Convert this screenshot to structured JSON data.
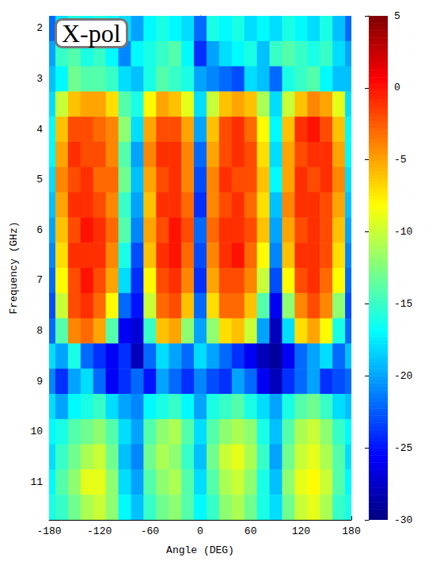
{
  "chart_data": {
    "type": "heatmap",
    "title": "X-pol",
    "x_label": "Angle (DEG)",
    "y_label": "Frequency (GHz)",
    "x": [
      -180,
      -165,
      -150,
      -135,
      -120,
      -105,
      -90,
      -75,
      -60,
      -45,
      -30,
      -15,
      0,
      15,
      30,
      45,
      60,
      75,
      90,
      105,
      120,
      135,
      150,
      165,
      180
    ],
    "y": [
      2,
      2.5,
      3,
      3.5,
      4,
      4.5,
      5,
      5.5,
      6,
      6.5,
      7,
      7.5,
      8,
      8.5,
      9,
      9.5,
      10,
      10.5,
      11,
      11.5
    ],
    "values": [
      [
        -22,
        -18,
        -16,
        -17,
        -16,
        -17,
        -18,
        -20,
        -17,
        -16,
        -17,
        -18,
        -22,
        -16,
        -17,
        -16,
        -18,
        -17,
        -18,
        -16,
        -17,
        -18,
        -16,
        -19,
        -22
      ],
      [
        -20,
        -15,
        -14,
        -16,
        -15,
        -17,
        -21,
        -17,
        -16,
        -15,
        -14,
        -17,
        -24,
        -20,
        -18,
        -17,
        -16,
        -19,
        -15,
        -14,
        -15,
        -16,
        -15,
        -18,
        -20
      ],
      [
        -19,
        -17,
        -13,
        -14,
        -14,
        -15,
        -18,
        -19,
        -16,
        -14,
        -15,
        -16,
        -20,
        -21,
        -22,
        -23,
        -18,
        -19,
        -22,
        -16,
        -15,
        -14,
        -17,
        -19,
        -19
      ],
      [
        -18,
        -10,
        -6,
        -5,
        -5,
        -7,
        -14,
        -16,
        -8,
        -5,
        -6,
        -9,
        -18,
        -10,
        -6,
        -5,
        -6,
        -11,
        -18,
        -10,
        -6,
        -4,
        -5,
        -9,
        -18
      ],
      [
        -17,
        -6,
        -2,
        -2,
        -3,
        -4,
        -12,
        -18,
        -5,
        -2,
        -2,
        -5,
        -20,
        -6,
        -2,
        -1,
        -3,
        -8,
        -17,
        -6,
        -1,
        0,
        -2,
        -6,
        -17
      ],
      [
        -17,
        -5,
        -1,
        -2,
        -2,
        -4,
        -14,
        -20,
        -4,
        -1,
        -1,
        -4,
        -22,
        -5,
        -2,
        -1,
        -2,
        -7,
        -18,
        -5,
        -2,
        -1,
        -1,
        -5,
        -17
      ],
      [
        -18,
        -4,
        -2,
        -1,
        -3,
        -3,
        -13,
        -19,
        -5,
        -2,
        -1,
        -4,
        -23,
        -4,
        -1,
        -2,
        -2,
        -6,
        -17,
        -5,
        -1,
        -2,
        -1,
        -4,
        -18
      ],
      [
        -19,
        -5,
        -1,
        -1,
        -2,
        -4,
        -15,
        -20,
        -6,
        -1,
        -1,
        -3,
        -24,
        -4,
        -2,
        -1,
        -3,
        -7,
        -19,
        -4,
        -1,
        -1,
        -2,
        -5,
        -19
      ],
      [
        -20,
        -6,
        -2,
        0,
        -1,
        -3,
        -14,
        -21,
        -5,
        -2,
        0,
        -2,
        -22,
        -3,
        -1,
        -1,
        -2,
        -6,
        -20,
        -5,
        -2,
        -1,
        -2,
        -6,
        -20
      ],
      [
        -21,
        -7,
        -1,
        -1,
        -1,
        -4,
        -16,
        -23,
        -6,
        -1,
        0,
        -3,
        -23,
        -4,
        -1,
        0,
        -3,
        -8,
        -21,
        -6,
        -1,
        -1,
        -2,
        -7,
        -21
      ],
      [
        -22,
        -8,
        -2,
        0,
        -2,
        -5,
        -18,
        -24,
        -8,
        -2,
        -1,
        -4,
        -24,
        -5,
        -2,
        -2,
        -4,
        -10,
        -23,
        -8,
        -2,
        -1,
        -3,
        -8,
        -22
      ],
      [
        -23,
        -10,
        -2,
        -1,
        -3,
        -8,
        -22,
        -25,
        -10,
        -3,
        -2,
        -6,
        -22,
        -7,
        -3,
        -3,
        -6,
        -14,
        -26,
        -12,
        -4,
        -2,
        -4,
        -12,
        -23
      ],
      [
        -22,
        -14,
        -4,
        -3,
        -5,
        -14,
        -26,
        -27,
        -15,
        -6,
        -5,
        -12,
        -20,
        -12,
        -7,
        -6,
        -10,
        -20,
        -28,
        -18,
        -7,
        -5,
        -8,
        -16,
        -22
      ],
      [
        -18,
        -20,
        -16,
        -22,
        -24,
        -26,
        -24,
        -28,
        -22,
        -18,
        -20,
        -22,
        -18,
        -20,
        -22,
        -24,
        -26,
        -28,
        -29,
        -26,
        -22,
        -20,
        -18,
        -22,
        -19
      ],
      [
        -21,
        -24,
        -20,
        -18,
        -22,
        -26,
        -24,
        -22,
        -25,
        -20,
        -22,
        -24,
        -21,
        -23,
        -24,
        -20,
        -22,
        -26,
        -28,
        -24,
        -22,
        -20,
        -24,
        -23,
        -22
      ],
      [
        -18,
        -20,
        -17,
        -16,
        -15,
        -18,
        -20,
        -21,
        -17,
        -16,
        -15,
        -17,
        -20,
        -16,
        -15,
        -14,
        -16,
        -18,
        -20,
        -16,
        -14,
        -13,
        -15,
        -18,
        -19
      ],
      [
        -17,
        -16,
        -14,
        -13,
        -12,
        -14,
        -18,
        -20,
        -14,
        -12,
        -11,
        -14,
        -18,
        -14,
        -12,
        -11,
        -12,
        -16,
        -19,
        -14,
        -11,
        -10,
        -12,
        -15,
        -17
      ],
      [
        -18,
        -15,
        -13,
        -11,
        -10,
        -13,
        -19,
        -21,
        -13,
        -11,
        -12,
        -15,
        -19,
        -13,
        -10,
        -9,
        -11,
        -15,
        -20,
        -13,
        -10,
        -9,
        -11,
        -14,
        -18
      ],
      [
        -17,
        -14,
        -12,
        -9,
        -9,
        -12,
        -18,
        -20,
        -14,
        -12,
        -11,
        -14,
        -18,
        -14,
        -11,
        -10,
        -12,
        -16,
        -19,
        -12,
        -9,
        -8,
        -10,
        -14,
        -17
      ],
      [
        -16,
        -15,
        -13,
        -11,
        -10,
        -12,
        -17,
        -19,
        -15,
        -13,
        -12,
        -14,
        -17,
        -15,
        -12,
        -11,
        -13,
        -16,
        -18,
        -13,
        -10,
        -9,
        -11,
        -15,
        -16
      ]
    ],
    "xlim": [
      -180,
      180
    ],
    "xticks": [
      -180,
      -120,
      -60,
      0,
      60,
      120,
      180
    ],
    "ylim": [
      1.75,
      11.75
    ],
    "yticks": [
      2,
      3,
      4,
      5,
      6,
      7,
      8,
      9,
      10,
      11
    ],
    "colorbar": {
      "range": [
        -30,
        5
      ],
      "ticks": [
        5,
        0,
        -5,
        -10,
        -15,
        -20,
        -25,
        -30
      ]
    }
  }
}
